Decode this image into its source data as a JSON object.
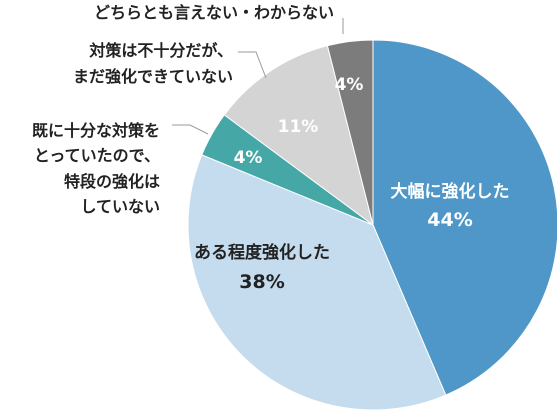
{
  "chart_data": {
    "type": "pie",
    "title": "",
    "slices": [
      {
        "label": "大幅に強化した",
        "value": 44,
        "value_label": "44%",
        "color": "#4f97c8",
        "text_color": "#ffffff"
      },
      {
        "label": "ある程度強化した",
        "value": 38,
        "value_label": "38%",
        "color": "#c4dcee",
        "text_color": "#222222"
      },
      {
        "label": "既に十分な対策をとっていたので、特段の強化はしていない",
        "value": 4,
        "value_label": "4%",
        "color": "#45a8a6",
        "text_color": "#ffffff"
      },
      {
        "label": "対策は不十分だが、まだ強化できていない",
        "value": 11,
        "value_label": "11%",
        "color": "#d4d4d4",
        "text_color": "#ffffff"
      },
      {
        "label": "どちらとも言えない・わからない",
        "value": 4,
        "value_label": "4%",
        "color": "#7c7c7c",
        "text_color": "#ffffff"
      }
    ],
    "external_labels": [
      {
        "lines": [
          "既に十分な対策を",
          "とっていたので、",
          "特段の強化は",
          "していない"
        ]
      },
      {
        "lines": [
          "対策は不十分だが、",
          "まだ強化できていない"
        ]
      },
      {
        "lines": [
          "どちらとも言えない・わからない"
        ]
      }
    ]
  }
}
